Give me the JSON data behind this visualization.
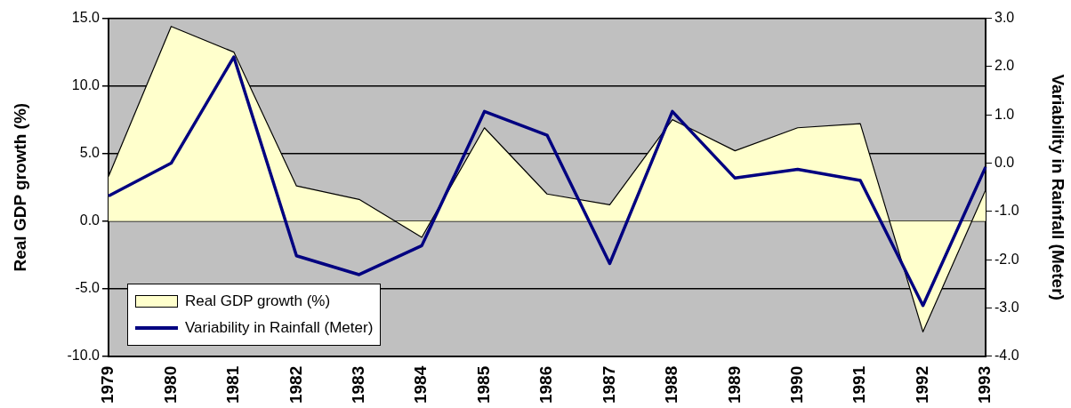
{
  "chart_data": {
    "type": "area",
    "xlabel": null,
    "ylabel": "Real GDP growth (%)",
    "y2label": "Variability in Rainfall (Meter)",
    "categories": [
      "1979",
      "1980",
      "1981",
      "1982",
      "1983",
      "1984",
      "1985",
      "1986",
      "1987",
      "1988",
      "1989",
      "1990",
      "1991",
      "1992",
      "1993"
    ],
    "series": [
      {
        "name": "Real GDP growth (%)",
        "color": "#ffffcc",
        "values": [
          3.3,
          14.4,
          12.5,
          2.6,
          1.6,
          -1.2,
          6.9,
          2.0,
          1.2,
          7.5,
          5.2,
          6.9,
          7.2,
          -8.2,
          2.3
        ]
      },
      {
        "name": "Variability in Rainfall (Meter)",
        "type": "line",
        "axis": "y2",
        "color": "#000080",
        "values": [
          -0.68,
          0.0,
          2.2,
          -1.92,
          -2.31,
          -1.71,
          1.07,
          0.58,
          -2.08,
          1.07,
          -0.31,
          -0.13,
          -0.36,
          -2.95,
          -0.08
        ]
      }
    ],
    "ylim": [
      -10,
      15
    ],
    "yticks": [
      {
        "value": -10,
        "label": "-10.0"
      },
      {
        "value": -5,
        "label": "-5.0"
      },
      {
        "value": 0,
        "label": "0.0"
      },
      {
        "value": 5,
        "label": "5.0"
      },
      {
        "value": 10,
        "label": "10.0"
      },
      {
        "value": 15,
        "label": "15.0"
      }
    ],
    "y2lim": [
      -4,
      3
    ],
    "y2ticks": [
      {
        "value": -4,
        "label": "-4.0"
      },
      {
        "value": -3,
        "label": "-3.0"
      },
      {
        "value": -2,
        "label": "-2.0"
      },
      {
        "value": -1,
        "label": "-1.0"
      },
      {
        "value": 0,
        "label": "0.0"
      },
      {
        "value": 1,
        "label": "1.0"
      },
      {
        "value": 2,
        "label": "2.0"
      },
      {
        "value": 3,
        "label": "3.0"
      }
    ],
    "grid": "y",
    "legend": "bottom left",
    "marker": "none"
  }
}
